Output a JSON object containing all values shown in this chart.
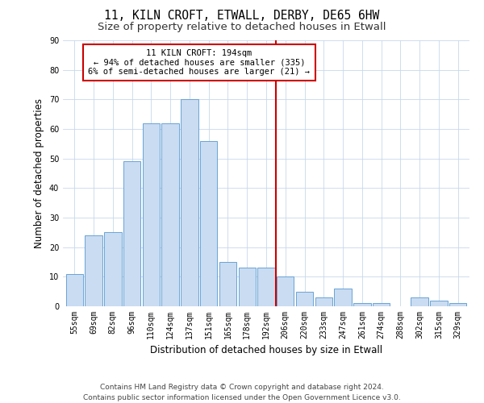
{
  "title": "11, KILN CROFT, ETWALL, DERBY, DE65 6HW",
  "subtitle": "Size of property relative to detached houses in Etwall",
  "xlabel": "Distribution of detached houses by size in Etwall",
  "ylabel": "Number of detached properties",
  "categories": [
    "55sqm",
    "69sqm",
    "82sqm",
    "96sqm",
    "110sqm",
    "124sqm",
    "137sqm",
    "151sqm",
    "165sqm",
    "178sqm",
    "192sqm",
    "206sqm",
    "220sqm",
    "233sqm",
    "247sqm",
    "261sqm",
    "274sqm",
    "288sqm",
    "302sqm",
    "315sqm",
    "329sqm"
  ],
  "values": [
    11,
    24,
    25,
    49,
    62,
    62,
    70,
    56,
    15,
    13,
    13,
    10,
    5,
    3,
    6,
    1,
    1,
    0,
    3,
    2,
    1
  ],
  "bar_color": "#c9dcf2",
  "bar_edge_color": "#6aa3d5",
  "grid_color": "#c8d8ec",
  "vline_color": "#cc0000",
  "annotation_text": "11 KILN CROFT: 194sqm\n← 94% of detached houses are smaller (335)\n6% of semi-detached houses are larger (21) →",
  "annotation_box_color": "#ffffff",
  "annotation_box_edge": "#cc0000",
  "ylim": [
    0,
    90
  ],
  "yticks": [
    0,
    10,
    20,
    30,
    40,
    50,
    60,
    70,
    80,
    90
  ],
  "footer": "Contains HM Land Registry data © Crown copyright and database right 2024.\nContains public sector information licensed under the Open Government Licence v3.0.",
  "title_fontsize": 10.5,
  "subtitle_fontsize": 9.5,
  "axis_label_fontsize": 8.5,
  "tick_fontsize": 7,
  "footer_fontsize": 6.5,
  "annotation_fontsize": 7.5
}
